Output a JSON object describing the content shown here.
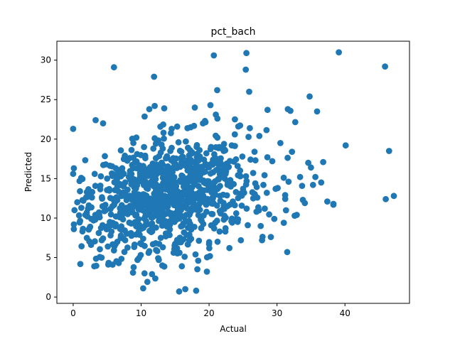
{
  "chart_data": {
    "type": "scatter",
    "title": "pct_bach",
    "xlabel": "Actual",
    "ylabel": "Predicted",
    "xlim": [
      -2.4,
      49.5
    ],
    "ylim": [
      -0.8,
      32.4
    ],
    "xticks": [
      0,
      10,
      20,
      30,
      40
    ],
    "yticks": [
      0,
      5,
      10,
      15,
      20,
      25,
      30
    ],
    "grid": false,
    "marker_color": "#1f77b4",
    "points": {
      "x": [
        0.0,
        6.0,
        11.9,
        20.7,
        25.5,
        39.1,
        45.9,
        46.5,
        47.2,
        46.0,
        38.3,
        37.4,
        34.8,
        35.9,
        31.6,
        28.6,
        21.2,
        20.2,
        25.9,
        25.4,
        18.1,
        10.3,
        16.5,
        15.6,
        17.9,
        19.1,
        13.4,
        12.0,
        11.2,
        3.3,
        4.4,
        0.1,
        0.0,
        0.2,
        0.1,
        0.1,
        1.0,
        1.5,
        2.3,
        2.0,
        4.2,
        5.1,
        6.0,
        5.8,
        6.7,
        3.1,
        10.5,
        11.6,
        16.4,
        18.4,
        16.0,
        20.0,
        23.0,
        22.4,
        27.8,
        29.1,
        31.5,
        32.9,
        33.8,
        38.3,
        36.5,
        35.3,
        40.1,
        30.5,
        29.3,
        27.4,
        26.1,
        24.3,
        23.8,
        21.0,
        19.4,
        17.3,
        14.5,
        13.3,
        12.0,
        9.3,
        7.6,
        6.4,
        8.2,
        9.0,
        11.5,
        13.8,
        15.1,
        16.8,
        18.6,
        20.3,
        22.1,
        24.6,
        26.8,
        28.5,
        30.1,
        31.7,
        33.4,
        35.0,
        36.8,
        34.1,
        32.6,
        31.0,
        29.6,
        28.2,
        27.1,
        25.0,
        23.5,
        22.7,
        21.6,
        20.8,
        19.9,
        18.9,
        17.8,
        16.6,
        15.4,
        14.2,
        13.1,
        12.4,
        11.3,
        10.1,
        9.6,
        8.7,
        7.9,
        7.1,
        6.3,
        5.4,
        4.8,
        3.9,
        3.0,
        2.5,
        1.8,
        1.2,
        0.6,
        2.8,
        4.0,
        5.0,
        6.9,
        8.0,
        9.2,
        10.7,
        12.6,
        14.0,
        15.8,
        17.5,
        19.2,
        21.4,
        23.2,
        24.9,
        26.5,
        28.0,
        29.8,
        31.2,
        32.2,
        34.6,
        5.5,
        6.5,
        7.4,
        8.5,
        9.8,
        10.9,
        12.2,
        13.6,
        14.8,
        16.2,
        17.4,
        18.8,
        20.5,
        22.0,
        24.0,
        25.7,
        27.6,
        8.3,
        9.4,
        10.6,
        11.8,
        13.0,
        14.3,
        15.5,
        16.9,
        18.2,
        19.6,
        21.1,
        22.6,
        24.2,
        7.2,
        8.8,
        10.2,
        11.7,
        13.2,
        14.6,
        16.1,
        17.6,
        19.0,
        20.6,
        22.3,
        9.9,
        12.9,
        15.2,
        17.1,
        11.1,
        14.9,
        18.0,
        10.4,
        13.5,
        16.3,
        12.3,
        14.1,
        9.0,
        15.9
      ],
      "y": [
        21.3,
        29.1,
        27.9,
        30.6,
        30.9,
        31.0,
        29.2,
        18.5,
        12.8,
        12.4,
        11.7,
        12.1,
        25.4,
        23.5,
        23.8,
        23.7,
        26.2,
        24.3,
        26.0,
        28.8,
        0.8,
        1.1,
        1.0,
        0.7,
        24.0,
        22.0,
        23.9,
        24.2,
        23.8,
        22.4,
        22.0,
        16.3,
        15.6,
        11.0,
        9.2,
        8.6,
        13.4,
        12.2,
        11.6,
        10.7,
        7.2,
        6.4,
        5.9,
        4.1,
        4.3,
        3.9,
        3.0,
        2.9,
        5.1,
        4.6,
        3.9,
        6.7,
        6.2,
        8.3,
        7.2,
        7.6,
        5.7,
        10.4,
        12.3,
        11.8,
        14.5,
        14.2,
        19.2,
        19.5,
        17.2,
        20.4,
        17.4,
        21.6,
        22.5,
        23.1,
        22.3,
        21.5,
        21.3,
        20.8,
        20.1,
        20.2,
        17.9,
        16.2,
        15.2,
        13.9,
        14.6,
        15.5,
        16.8,
        17.3,
        18.6,
        19.0,
        16.7,
        15.3,
        14.4,
        13.2,
        13.8,
        14.6,
        15.2,
        16.4,
        17.1,
        11.9,
        10.3,
        9.4,
        9.9,
        11.2,
        12.6,
        13.7,
        12.1,
        11.5,
        12.8,
        13.5,
        14.1,
        13.2,
        12.4,
        11.8,
        12.9,
        13.4,
        11.9,
        12.6,
        11.4,
        12.1,
        13.0,
        12.3,
        11.2,
        10.8,
        10.2,
        9.5,
        11.0,
        10.1,
        9.7,
        8.9,
        10.4,
        11.3,
        12.0,
        13.3,
        14.1,
        15.0,
        14.3,
        13.6,
        14.8,
        15.7,
        16.1,
        15.4,
        14.6,
        13.9,
        15.8,
        14.9,
        14.0,
        13.1,
        12.5,
        14.2,
        13.7,
        12.9,
        18.4,
        17.0,
        7.8,
        7.0,
        7.4,
        8.1,
        8.6,
        9.2,
        8.8,
        9.6,
        10.0,
        9.3,
        8.7,
        9.8,
        10.5,
        11.1,
        10.6,
        9.1,
        9.0,
        17.6,
        18.1,
        17.9,
        18.8,
        19.3,
        18.5,
        19.6,
        18.9,
        17.7,
        18.2,
        17.5,
        16.9,
        16.6,
        15.9,
        16.3,
        15.6,
        16.9,
        15.1,
        16.0,
        15.3,
        14.7,
        16.5,
        15.8,
        15.0,
        6.8,
        7.5,
        6.9,
        7.9,
        5.6,
        6.1,
        5.4,
        13.0,
        12.2,
        11.5,
        10.9,
        12.7,
        11.7,
        10.3
      ],
      "count": 1000
    }
  }
}
